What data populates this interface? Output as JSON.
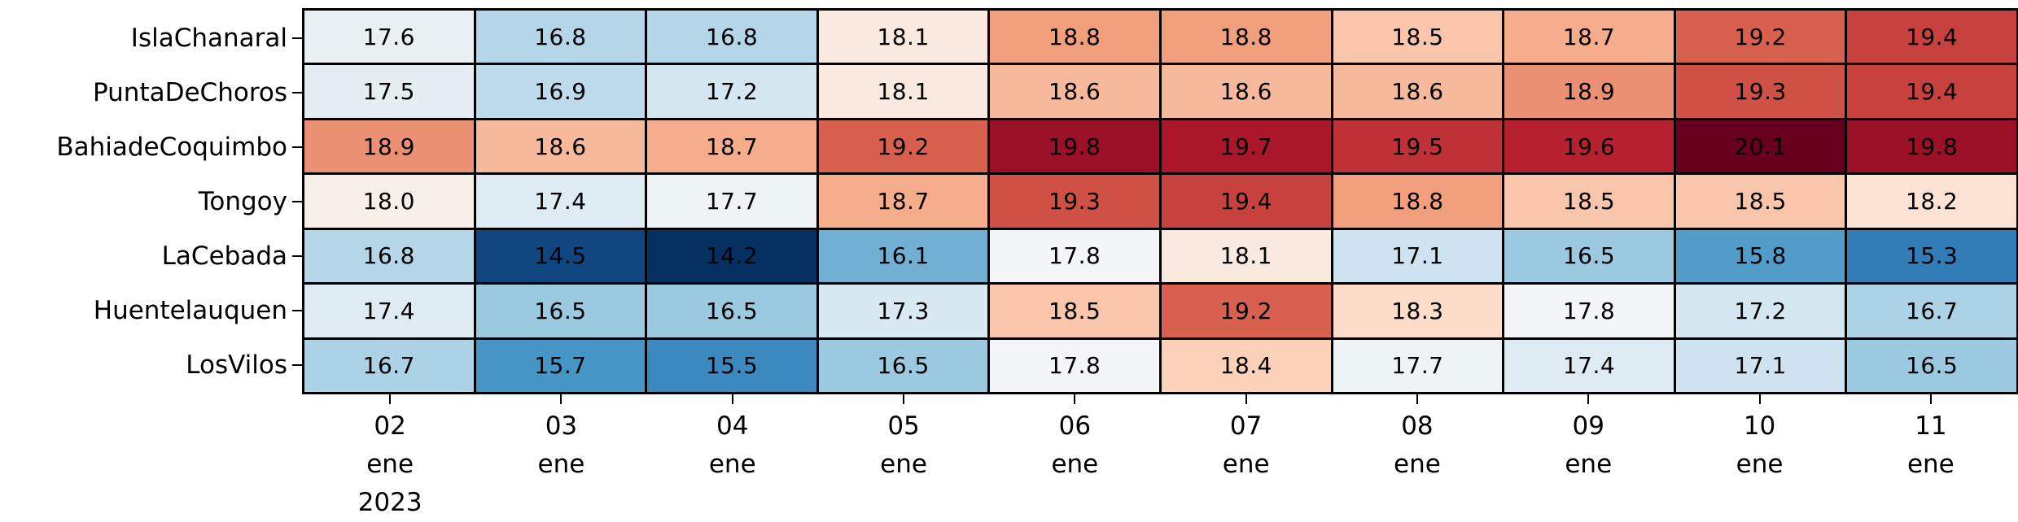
{
  "chart_data": {
    "type": "heatmap",
    "title": "",
    "rows": [
      "IslaChanaral",
      "PuntaDeChoros",
      "BahiadeCoquimbo",
      "Tongoy",
      "LaCebada",
      "Huentelauquen",
      "LosVilos"
    ],
    "columns": [
      "02\nene\n2023",
      "03\nene",
      "04\nene",
      "05\nene",
      "06\nene",
      "07\nene",
      "08\nene",
      "09\nene",
      "10\nene",
      "11\nene"
    ],
    "values": [
      [
        17.6,
        16.8,
        16.8,
        18.1,
        18.8,
        18.8,
        18.5,
        18.7,
        19.2,
        19.4
      ],
      [
        17.5,
        16.9,
        17.2,
        18.1,
        18.6,
        18.6,
        18.6,
        18.9,
        19.3,
        19.4
      ],
      [
        18.9,
        18.6,
        18.7,
        19.2,
        19.8,
        19.7,
        19.5,
        19.6,
        20.1,
        19.8
      ],
      [
        18.0,
        17.4,
        17.7,
        18.7,
        19.3,
        19.4,
        18.8,
        18.5,
        18.5,
        18.2
      ],
      [
        16.8,
        14.5,
        14.2,
        16.1,
        17.8,
        18.1,
        17.1,
        16.5,
        15.8,
        15.3
      ],
      [
        17.4,
        16.5,
        16.5,
        17.3,
        18.5,
        19.2,
        18.3,
        17.8,
        17.2,
        16.7
      ],
      [
        16.7,
        15.7,
        15.5,
        16.5,
        17.8,
        18.4,
        17.7,
        17.4,
        17.1,
        16.5
      ]
    ],
    "value_format_decimals": 1,
    "color_scale": {
      "name": "RdBu_r",
      "vmin": 14.2,
      "center": 17.87,
      "vmax": 20.1,
      "stops": [
        "#053061",
        "#2166ac",
        "#4393c3",
        "#92c5de",
        "#d1e5f0",
        "#f7f7f7",
        "#fddbc7",
        "#f4a582",
        "#d6604d",
        "#b2182b",
        "#67001f"
      ]
    },
    "grid_line_color": "#000000",
    "annotation_color": "#000000",
    "legend": "none"
  }
}
